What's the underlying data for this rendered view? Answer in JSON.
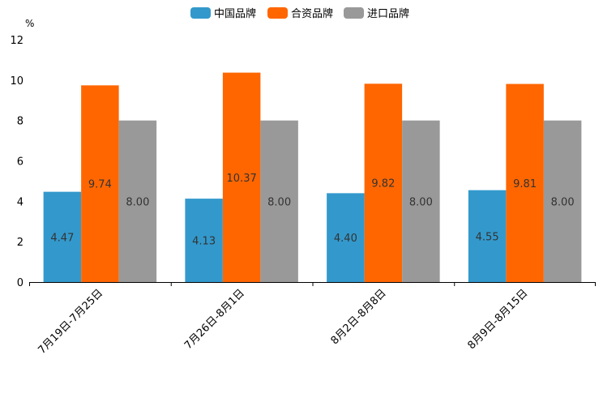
{
  "chart_data": {
    "type": "bar",
    "title": "",
    "xlabel": "",
    "ylabel": "%",
    "ylim": [
      0,
      12
    ],
    "yticks": [
      0,
      2,
      4,
      6,
      8,
      10,
      12
    ],
    "grid": false,
    "legend_position": "top-center",
    "categories": [
      "7月19日-7月25日",
      "7月26日-8月1日",
      "8月2日-8月8日",
      "8月9日-8月15日"
    ],
    "series": [
      {
        "name": "中国品牌",
        "color": "#3399cc",
        "values": [
          4.47,
          4.13,
          4.4,
          4.55
        ],
        "labels": [
          "4.47",
          "4.13",
          "4.40",
          "4.55"
        ]
      },
      {
        "name": "合资品牌",
        "color": "#ff6600",
        "values": [
          9.74,
          10.37,
          9.82,
          9.81
        ],
        "labels": [
          "9.74",
          "10.37",
          "9.82",
          "9.81"
        ]
      },
      {
        "name": "进口品牌",
        "color": "#999999",
        "values": [
          8.0,
          8.0,
          8.0,
          8.0
        ],
        "labels": [
          "8.00",
          "8.00",
          "8.00",
          "8.00"
        ]
      }
    ]
  }
}
